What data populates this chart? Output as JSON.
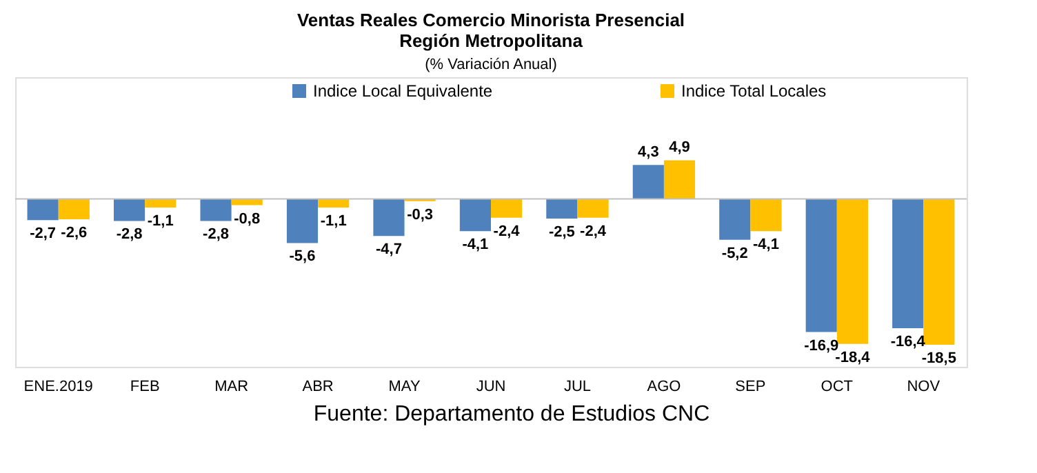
{
  "chart_data": {
    "type": "bar",
    "title": "Ventas Reales Comercio Minorista Presencial\nRegión Metropolitana",
    "subtitle": "(% Variación Anual)",
    "categories": [
      "ENE.2019",
      "FEB",
      "MAR",
      "ABR",
      "MAY",
      "JUN",
      "JUL",
      "AGO",
      "SEP",
      "OCT",
      "NOV"
    ],
    "series": [
      {
        "name": "Indice Local Equivalente",
        "color": "#4f81bd",
        "values": [
          -2.7,
          -2.8,
          -2.8,
          -5.6,
          -4.7,
          -4.1,
          -2.5,
          4.3,
          -5.2,
          -16.9,
          -16.4
        ],
        "value_labels": [
          "-2,7",
          "-2,8",
          "-2,8",
          "-5,6",
          "-4,7",
          "-4,1",
          "-2,5",
          "4,3",
          "-5,2",
          "-16,9",
          "-16,4"
        ]
      },
      {
        "name": "Indice Total Locales",
        "color": "#ffc000",
        "values": [
          -2.6,
          -1.1,
          -0.8,
          -1.1,
          -0.3,
          -2.4,
          -2.4,
          4.9,
          -4.1,
          -18.4,
          -18.5
        ],
        "value_labels": [
          "-2,6",
          "-1,1",
          "-0,8",
          "-1,1",
          "-0,3",
          "-2,4",
          "-2,4",
          "4,9",
          "-4,1",
          "-18,4",
          "-18,5"
        ]
      }
    ],
    "legend": "top",
    "grid": false,
    "annotations": [
      "Fuente: Departamento de Estudios CNC"
    ]
  }
}
